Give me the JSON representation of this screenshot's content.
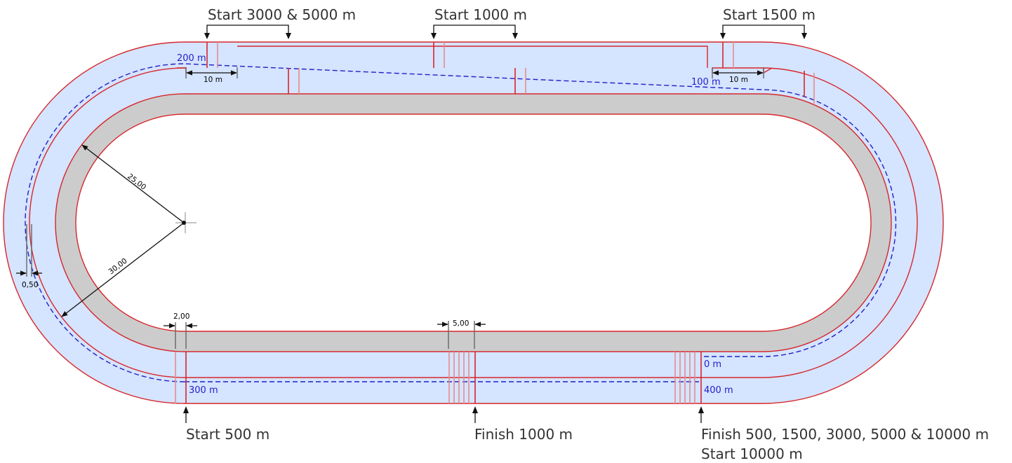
{
  "colors": {
    "ice": "#d5e4ff",
    "warmup": "#cccccc",
    "line_red": "#d7262b",
    "line_pink": "#e58c8c",
    "lane_blue": "#1f1fc8",
    "dimension": "#111111",
    "label_gray": "#333333"
  },
  "labels": {
    "start_3000_5000": "Start 3000 & 5000 m",
    "start_1000": "Start 1000 m",
    "start_1500": "Start 1500 m",
    "start_500": "Start 500 m",
    "finish_1000": "Finish 1000 m",
    "finish_main": "Finish 500, 1500, 3000, 5000 & 10000 m",
    "start_10000": "Start 10000 m"
  },
  "distances": {
    "d0": "0 m",
    "d100": "100 m",
    "d200": "200 m",
    "d300": "300 m",
    "d400": "400 m"
  },
  "dimensions": {
    "radius_inner": "25,00",
    "radius_outer": "30,00",
    "crossing_left": "10 m",
    "crossing_right": "10 m",
    "lane_offset": "0,50",
    "line_spacing_2": "2,00",
    "line_spacing_5": "5,00"
  }
}
